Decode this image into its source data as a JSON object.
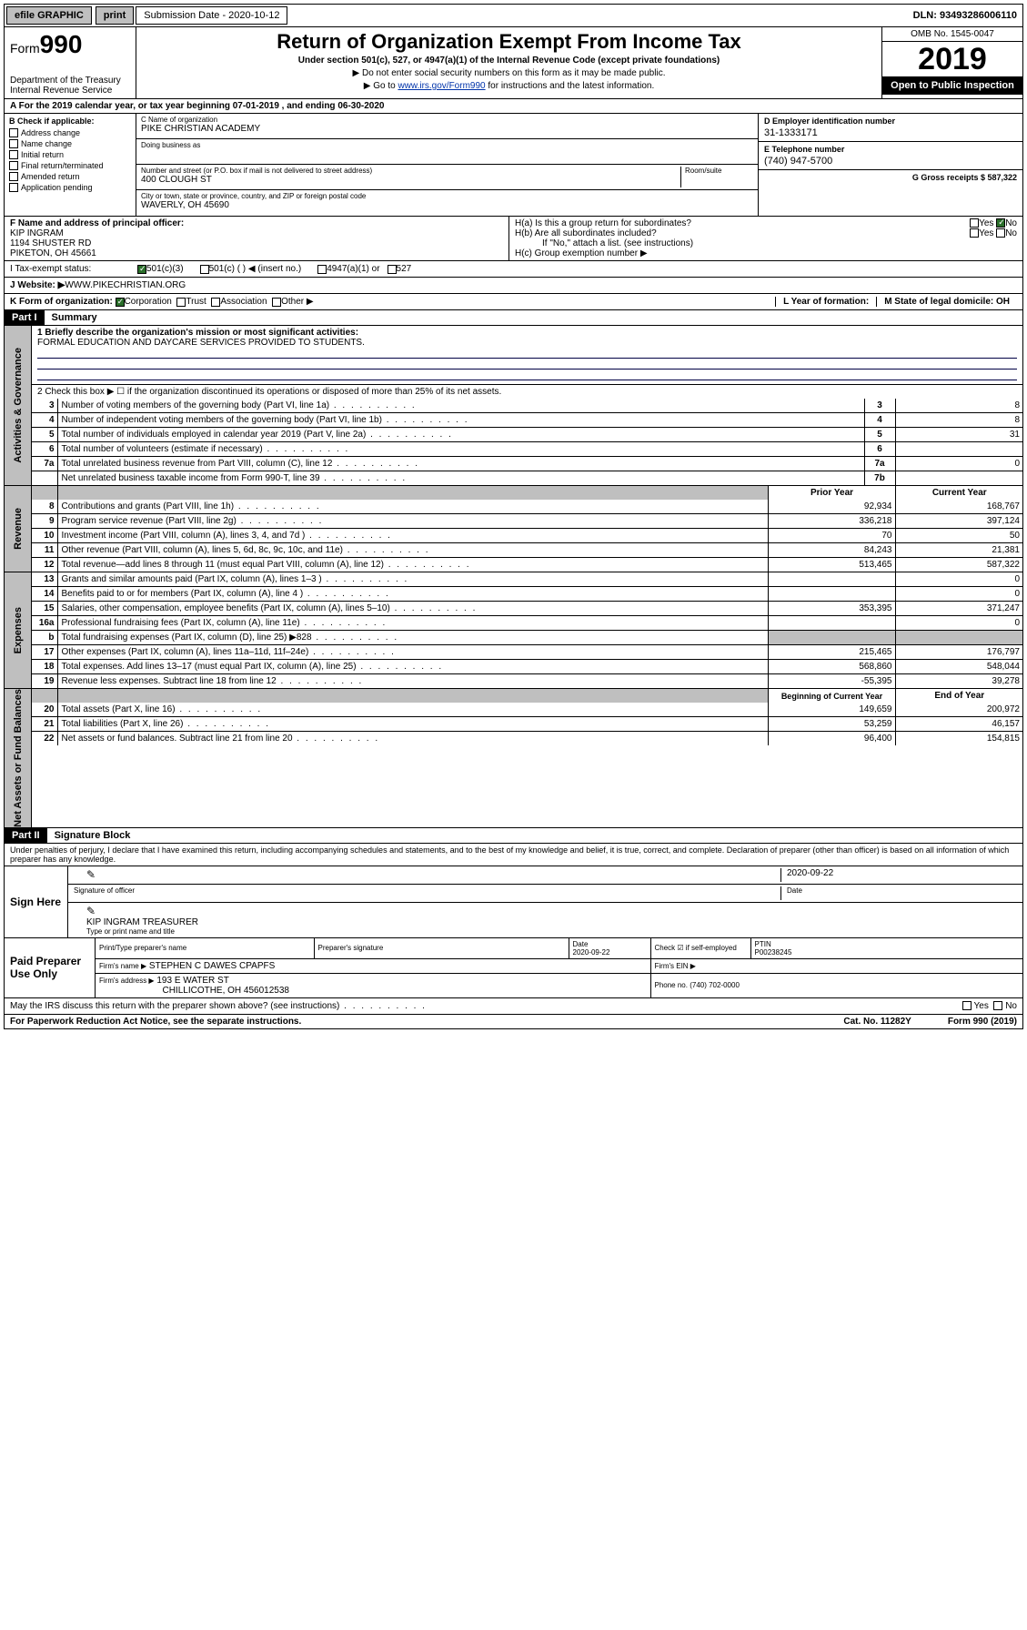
{
  "topbar": {
    "efile": "efile GRAPHIC",
    "print": "print",
    "sub_lbl": "Submission Date - 2020-10-12",
    "dln": "DLN: 93493286006110"
  },
  "header": {
    "form_prefix": "Form",
    "form_num": "990",
    "dept": "Department of the Treasury\nInternal Revenue Service",
    "title": "Return of Organization Exempt From Income Tax",
    "sub1": "Under section 501(c), 527, or 4947(a)(1) of the Internal Revenue Code (except private foundations)",
    "sub2a": "▶ Do not enter social security numbers on this form as it may be made public.",
    "sub2b": "▶ Go to ",
    "sub2b_link": "www.irs.gov/Form990",
    "sub2b_end": " for instructions and the latest information.",
    "omb": "OMB No. 1545-0047",
    "year": "2019",
    "open": "Open to Public Inspection"
  },
  "rowA": "A  For the 2019 calendar year, or tax year beginning 07-01-2019    , and ending 06-30-2020",
  "colB": {
    "hdr": "B Check if applicable:",
    "items": [
      "Address change",
      "Name change",
      "Initial return",
      "Final return/terminated",
      "Amended return",
      "Application pending"
    ]
  },
  "colC": {
    "name_lbl": "C Name of organization",
    "name": "PIKE CHRISTIAN ACADEMY",
    "dba_lbl": "Doing business as",
    "dba": "",
    "addr_lbl": "Number and street (or P.O. box if mail is not delivered to street address)",
    "room_lbl": "Room/suite",
    "addr": "400 CLOUGH ST",
    "city_lbl": "City or town, state or province, country, and ZIP or foreign postal code",
    "city": "WAVERLY, OH  45690"
  },
  "colDEG": {
    "d_lbl": "D Employer identification number",
    "d_val": "31-1333171",
    "e_lbl": "E Telephone number",
    "e_val": "(740) 947-5700",
    "g_lbl": "G Gross receipts $ 587,322"
  },
  "rowFH": {
    "f_lbl": "F  Name and address of principal officer:",
    "f_name": "KIP INGRAM",
    "f_addr1": "1194 SHUSTER RD",
    "f_addr2": "PIKETON, OH  45661",
    "ha_lbl": "H(a)  Is this a group return for subordinates?",
    "hb_lbl": "H(b)  Are all subordinates included?",
    "hb_note": "If \"No,\" attach a list. (see instructions)",
    "hc_lbl": "H(c)  Group exemption number ▶",
    "yes": "Yes",
    "no": "No"
  },
  "rowI": {
    "lbl": "I    Tax-exempt status:",
    "o1": "501(c)(3)",
    "o2": "501(c) (  ) ◀ (insert no.)",
    "o3": "4947(a)(1) or",
    "o4": "527"
  },
  "rowJ": {
    "lbl": "J   Website: ▶",
    "val": "  WWW.PIKECHRISTIAN.ORG"
  },
  "rowK": {
    "lbl": "K Form of organization:",
    "o1": "Corporation",
    "o2": "Trust",
    "o3": "Association",
    "o4": "Other ▶",
    "l_lbl": "L Year of formation:",
    "l_val": "",
    "m_lbl": "M State of legal domicile: OH"
  },
  "part1": {
    "hdr": "Part I",
    "title": "Summary"
  },
  "gov": {
    "label": "Activities & Governance",
    "l1": "1  Briefly describe the organization's mission or most significant activities:",
    "l1v": "FORMAL EDUCATION AND DAYCARE SERVICES PROVIDED TO STUDENTS.",
    "l2": "2   Check this box ▶ ☐  if the organization discontinued its operations or disposed of more than 25% of its net assets.",
    "rows": [
      {
        "n": "3",
        "d": "Number of voting members of the governing body (Part VI, line 1a)",
        "c": "3",
        "v": "8"
      },
      {
        "n": "4",
        "d": "Number of independent voting members of the governing body (Part VI, line 1b)",
        "c": "4",
        "v": "8"
      },
      {
        "n": "5",
        "d": "Total number of individuals employed in calendar year 2019 (Part V, line 2a)",
        "c": "5",
        "v": "31"
      },
      {
        "n": "6",
        "d": "Total number of volunteers (estimate if necessary)",
        "c": "6",
        "v": ""
      },
      {
        "n": "7a",
        "d": "Total unrelated business revenue from Part VIII, column (C), line 12",
        "c": "7a",
        "v": "0"
      },
      {
        "n": "",
        "d": "Net unrelated business taxable income from Form 990-T, line 39",
        "c": "7b",
        "v": ""
      }
    ]
  },
  "rev": {
    "label": "Revenue",
    "h1": "Prior Year",
    "h2": "Current Year",
    "rows": [
      {
        "n": "8",
        "d": "Contributions and grants (Part VIII, line 1h)",
        "p": "92,934",
        "c": "168,767"
      },
      {
        "n": "9",
        "d": "Program service revenue (Part VIII, line 2g)",
        "p": "336,218",
        "c": "397,124"
      },
      {
        "n": "10",
        "d": "Investment income (Part VIII, column (A), lines 3, 4, and 7d )",
        "p": "70",
        "c": "50"
      },
      {
        "n": "11",
        "d": "Other revenue (Part VIII, column (A), lines 5, 6d, 8c, 9c, 10c, and 11e)",
        "p": "84,243",
        "c": "21,381"
      },
      {
        "n": "12",
        "d": "Total revenue—add lines 8 through 11 (must equal Part VIII, column (A), line 12)",
        "p": "513,465",
        "c": "587,322"
      }
    ]
  },
  "exp": {
    "label": "Expenses",
    "rows": [
      {
        "n": "13",
        "d": "Grants and similar amounts paid (Part IX, column (A), lines 1–3 )",
        "p": "",
        "c": "0"
      },
      {
        "n": "14",
        "d": "Benefits paid to or for members (Part IX, column (A), line 4 )",
        "p": "",
        "c": "0"
      },
      {
        "n": "15",
        "d": "Salaries, other compensation, employee benefits (Part IX, column (A), lines 5–10)",
        "p": "353,395",
        "c": "371,247"
      },
      {
        "n": "16a",
        "d": "Professional fundraising fees (Part IX, column (A), line 11e)",
        "p": "",
        "c": "0"
      },
      {
        "n": "b",
        "d": "Total fundraising expenses (Part IX, column (D), line 25) ▶828",
        "p": "shade",
        "c": "shade"
      },
      {
        "n": "17",
        "d": "Other expenses (Part IX, column (A), lines 11a–11d, 11f–24e)",
        "p": "215,465",
        "c": "176,797"
      },
      {
        "n": "18",
        "d": "Total expenses. Add lines 13–17 (must equal Part IX, column (A), line 25)",
        "p": "568,860",
        "c": "548,044"
      },
      {
        "n": "19",
        "d": "Revenue less expenses. Subtract line 18 from line 12",
        "p": "-55,395",
        "c": "39,278"
      }
    ]
  },
  "na": {
    "label": "Net Assets or Fund Balances",
    "h1": "Beginning of Current Year",
    "h2": "End of Year",
    "rows": [
      {
        "n": "20",
        "d": "Total assets (Part X, line 16)",
        "p": "149,659",
        "c": "200,972"
      },
      {
        "n": "21",
        "d": "Total liabilities (Part X, line 26)",
        "p": "53,259",
        "c": "46,157"
      },
      {
        "n": "22",
        "d": "Net assets or fund balances. Subtract line 21 from line 20",
        "p": "96,400",
        "c": "154,815"
      }
    ]
  },
  "part2": {
    "hdr": "Part II",
    "title": "Signature Block"
  },
  "perjury": "Under penalties of perjury, I declare that I have examined this return, including accompanying schedules and statements, and to the best of my knowledge and belief, it is true, correct, and complete. Declaration of preparer (other than officer) is based on all information of which preparer has any knowledge.",
  "sign": {
    "here": "Sign Here",
    "sig_lbl": "Signature of officer",
    "date": "2020-09-22",
    "date_lbl": "Date",
    "name": "KIP INGRAM  TREASURER",
    "name_lbl": "Type or print name and title"
  },
  "paid": {
    "here": "Paid Preparer Use Only",
    "h1": "Print/Type preparer's name",
    "h2": "Preparer's signature",
    "h3": "Date",
    "h4": "Check ☑ if self-employed",
    "h5": "PTIN",
    "date": "2020-09-22",
    "ptin": "P00238245",
    "firm_lbl": "Firm's name    ▶",
    "firm": "STEPHEN C DAWES CPAPFS",
    "ein_lbl": "Firm's EIN ▶",
    "addr_lbl": "Firm's address ▶",
    "addr1": "193 E WATER ST",
    "addr2": "CHILLICOTHE, OH  456012538",
    "phone_lbl": "Phone no. (740) 702-0000"
  },
  "discuss": "May the IRS discuss this return with the preparer shown above? (see instructions)",
  "foot": {
    "l": "For Paperwork Reduction Act Notice, see the separate instructions.",
    "m": "Cat. No. 11282Y",
    "r": "Form 990 (2019)"
  },
  "colors": {
    "accent": "#0033aa",
    "shade": "#bfbfbf"
  }
}
